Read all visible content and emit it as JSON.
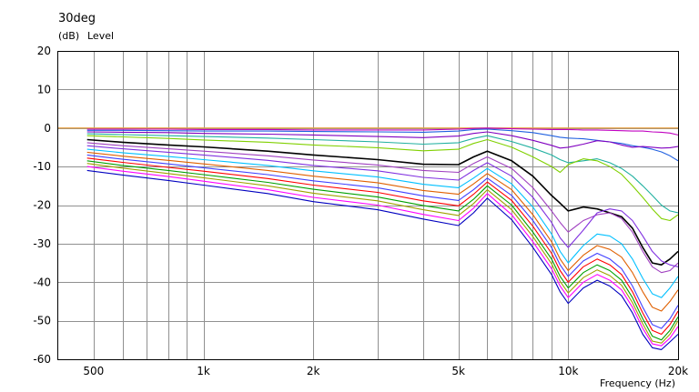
{
  "chart_data": {
    "type": "line",
    "title": "30deg",
    "ylabel_unit": "(dB)",
    "ylabel": "Level",
    "xlabel": "Frequency (Hz)",
    "xscale": "log",
    "xlim": [
      400,
      20000
    ],
    "ylim": [
      -60,
      20
    ],
    "grid": true,
    "y_ticks": [
      20,
      10,
      0,
      -10,
      -20,
      -30,
      -40,
      -50,
      -60
    ],
    "y_tick_labels": [
      "20",
      "10",
      "0",
      "-10",
      "-20",
      "-30",
      "-40",
      "-50",
      "-60"
    ],
    "x_tick_labels": [
      {
        "value": 500,
        "label": "500"
      },
      {
        "value": 1000,
        "label": "1k"
      },
      {
        "value": 2000,
        "label": "2k"
      },
      {
        "value": 5000,
        "label": "5k"
      },
      {
        "value": 10000,
        "label": "10k"
      },
      {
        "value": 20000,
        "label": "20k"
      }
    ],
    "reference_line": {
      "y": 0,
      "color": "#e8a040"
    },
    "x": [
      480,
      600,
      800,
      1000,
      1500,
      2000,
      3000,
      4000,
      5000,
      5500,
      6000,
      7000,
      8000,
      9000,
      9500,
      10000,
      11000,
      12000,
      13000,
      14000,
      15000,
      16000,
      17000,
      18000,
      19000,
      20000
    ],
    "series": [
      {
        "color": "#c000c0",
        "values": [
          -0.3,
          -0.3,
          -0.3,
          -0.4,
          -0.4,
          -0.5,
          -0.5,
          -0.5,
          -0.3,
          -0.1,
          0,
          -0.2,
          -0.3,
          -0.4,
          -0.4,
          -0.4,
          -0.5,
          -0.5,
          -0.6,
          -0.7,
          -0.8,
          -0.8,
          -1.0,
          -1.1,
          -1.3,
          -1.8
        ]
      },
      {
        "color": "#2060e0",
        "values": [
          -0.6,
          -0.6,
          -0.7,
          -0.8,
          -0.8,
          -0.9,
          -1.0,
          -1.1,
          -0.8,
          -0.4,
          -0.3,
          -0.7,
          -1.2,
          -2.0,
          -2.4,
          -2.6,
          -2.8,
          -3.2,
          -3.6,
          -4.0,
          -4.6,
          -5.0,
          -5.5,
          -6.2,
          -7.2,
          -8.5
        ]
      },
      {
        "color": "#8000c0",
        "values": [
          -1.0,
          -1.1,
          -1.2,
          -1.4,
          -1.6,
          -1.8,
          -2.2,
          -2.5,
          -2.1,
          -1.4,
          -1.0,
          -2.0,
          -3.2,
          -4.5,
          -5.2,
          -5.0,
          -4.2,
          -3.3,
          -3.6,
          -4.4,
          -5.0,
          -4.8,
          -5.0,
          -5.2,
          -5.1,
          -4.8
        ]
      },
      {
        "color": "#20b0a0",
        "values": [
          -1.5,
          -1.7,
          -2.0,
          -2.2,
          -2.6,
          -3.0,
          -3.6,
          -4.2,
          -3.8,
          -2.7,
          -2.0,
          -3.5,
          -5.2,
          -7.0,
          -8.2,
          -9.0,
          -8.5,
          -8.0,
          -9.0,
          -10.5,
          -12.5,
          -15.0,
          -17.5,
          -20.0,
          -21.5,
          -22.0
        ]
      },
      {
        "color": "#80d000",
        "values": [
          -2.0,
          -2.3,
          -2.7,
          -3.1,
          -3.7,
          -4.4,
          -5.1,
          -5.9,
          -5.5,
          -4.0,
          -3.0,
          -5.0,
          -7.5,
          -10.0,
          -11.5,
          -9.5,
          -8.0,
          -8.5,
          -10.0,
          -12.0,
          -15.0,
          -18.0,
          -21.0,
          -23.5,
          -24.0,
          -22.5
        ]
      },
      {
        "color": "#000000",
        "values": [
          -3.0,
          -3.7,
          -4.4,
          -4.9,
          -6.0,
          -7.0,
          -8.2,
          -9.4,
          -9.5,
          -7.5,
          -6.0,
          -8.5,
          -12.5,
          -17.5,
          -19.5,
          -21.5,
          -20.5,
          -21.0,
          -22.0,
          -23.0,
          -26.0,
          -31.0,
          -35.0,
          -35.5,
          -34.0,
          -32.0
        ]
      },
      {
        "color": "#a040c0",
        "values": [
          -3.8,
          -4.6,
          -5.4,
          -6.0,
          -7.2,
          -8.3,
          -9.6,
          -11.0,
          -11.5,
          -9.2,
          -7.5,
          -10.5,
          -15.5,
          -21.5,
          -24.5,
          -27.0,
          -24.0,
          -22.5,
          -22.0,
          -23.5,
          -27.0,
          -32.0,
          -36.0,
          -37.5,
          -37.0,
          -35.0
        ]
      },
      {
        "color": "#8030e0",
        "values": [
          -4.6,
          -5.4,
          -6.3,
          -7.0,
          -8.4,
          -9.7,
          -11.1,
          -12.8,
          -13.5,
          -11.0,
          -9.0,
          -12.5,
          -18.0,
          -24.5,
          -28.5,
          -31.0,
          -26.5,
          -22.0,
          -21.0,
          -21.5,
          -24.0,
          -28.0,
          -32.0,
          -34.5,
          -35.5,
          -36.0
        ]
      },
      {
        "color": "#00c0ff",
        "values": [
          -5.5,
          -6.4,
          -7.4,
          -8.2,
          -9.7,
          -11.1,
          -12.7,
          -14.6,
          -15.5,
          -13.0,
          -10.5,
          -14.5,
          -20.5,
          -27.5,
          -32.0,
          -35.0,
          -30.5,
          -27.5,
          -28.0,
          -30.0,
          -34.0,
          -39.0,
          -43.0,
          -44.0,
          -41.5,
          -38.5
        ]
      },
      {
        "color": "#e06000",
        "values": [
          -6.3,
          -7.3,
          -8.4,
          -9.3,
          -11.0,
          -12.5,
          -14.2,
          -16.2,
          -17.2,
          -14.5,
          -11.8,
          -16.0,
          -22.5,
          -29.5,
          -34.0,
          -37.0,
          -33.0,
          -30.5,
          -31.5,
          -33.5,
          -37.5,
          -42.5,
          -46.5,
          -47.5,
          -45.0,
          -42.0
        ]
      },
      {
        "color": "#4040ff",
        "values": [
          -7.0,
          -8.1,
          -9.3,
          -10.3,
          -12.1,
          -13.7,
          -15.5,
          -17.6,
          -18.8,
          -16.0,
          -13.0,
          -17.5,
          -24.0,
          -31.0,
          -35.5,
          -38.5,
          -34.5,
          -32.5,
          -34.0,
          -36.5,
          -41.0,
          -46.5,
          -51.0,
          -52.0,
          -49.5,
          -46.0
        ]
      },
      {
        "color": "#ff0000",
        "values": [
          -7.8,
          -8.9,
          -10.2,
          -11.2,
          -13.1,
          -14.8,
          -16.7,
          -18.9,
          -20.2,
          -17.2,
          -14.0,
          -18.8,
          -25.5,
          -32.5,
          -37.0,
          -40.0,
          -36.0,
          -34.0,
          -35.5,
          -38.0,
          -42.5,
          -48.0,
          -52.5,
          -53.5,
          -51.0,
          -47.5
        ]
      },
      {
        "color": "#00a000",
        "values": [
          -8.5,
          -9.7,
          -11.0,
          -12.1,
          -14.1,
          -15.9,
          -17.9,
          -20.1,
          -21.5,
          -18.5,
          -15.0,
          -20.0,
          -27.0,
          -34.0,
          -38.5,
          -41.5,
          -37.5,
          -35.5,
          -37.0,
          -39.5,
          -44.0,
          -49.5,
          -54.0,
          -55.0,
          -52.5,
          -49.0
        ]
      },
      {
        "color": "#a0a000",
        "values": [
          -9.2,
          -10.4,
          -11.8,
          -12.9,
          -15.0,
          -16.9,
          -18.9,
          -21.2,
          -22.7,
          -19.6,
          -16.0,
          -21.2,
          -28.2,
          -35.2,
          -39.8,
          -42.8,
          -38.8,
          -36.8,
          -38.3,
          -40.8,
          -45.3,
          -50.8,
          -55.3,
          -55.8,
          -53.5,
          -50.0
        ]
      },
      {
        "color": "#ff00ff",
        "values": [
          -10.0,
          -11.2,
          -12.6,
          -13.8,
          -16.0,
          -18.0,
          -20.0,
          -22.4,
          -24.0,
          -20.8,
          -17.0,
          -22.5,
          -29.5,
          -36.5,
          -41.0,
          -44.0,
          -40.0,
          -38.0,
          -39.5,
          -42.0,
          -46.5,
          -52.0,
          -56.0,
          -56.5,
          -54.5,
          -51.5
        ]
      },
      {
        "color": "#0000c0",
        "values": [
          -11.0,
          -12.2,
          -13.6,
          -14.8,
          -17.0,
          -19.1,
          -21.2,
          -23.6,
          -25.3,
          -22.0,
          -18.2,
          -23.8,
          -31.0,
          -38.0,
          -42.5,
          -45.5,
          -41.5,
          -39.5,
          -41.0,
          -43.5,
          -48.0,
          -53.5,
          -57.0,
          -57.5,
          -55.5,
          -53.5
        ]
      }
    ]
  }
}
